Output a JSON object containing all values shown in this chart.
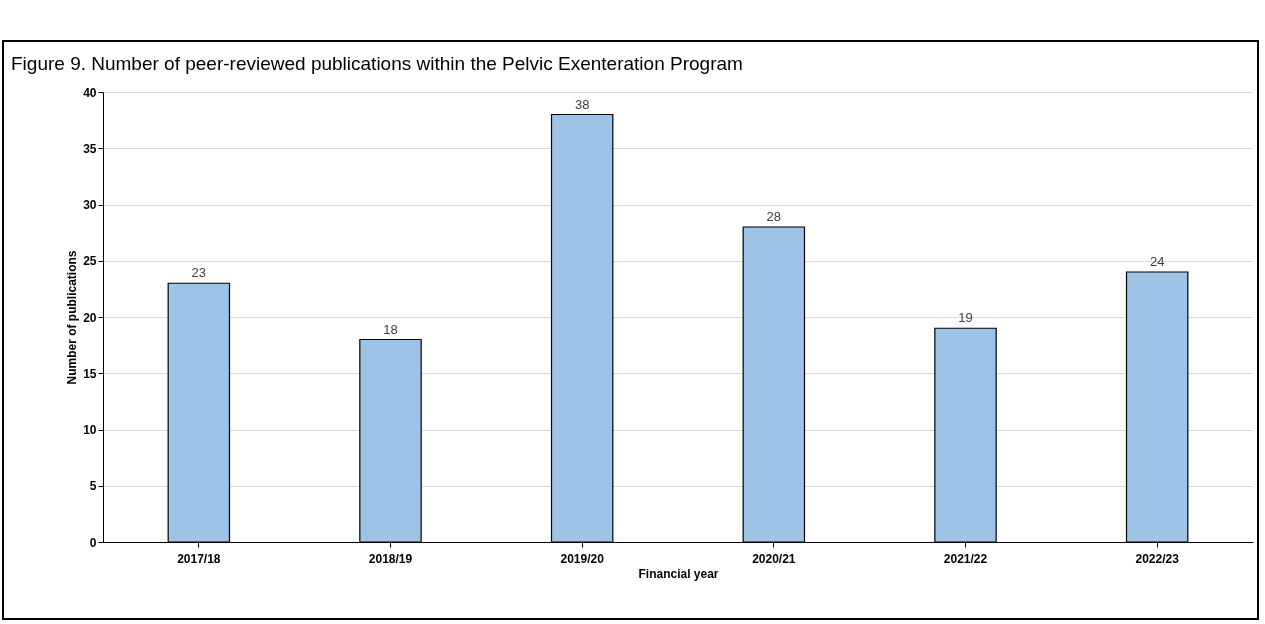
{
  "chart_data": {
    "type": "bar",
    "title": "Figure 9. Number of peer-reviewed publications within the Pelvic Exenteration Program",
    "xlabel": "Financial year",
    "ylabel": "Number of publications",
    "categories": [
      "2017/18",
      "2018/19",
      "2019/20",
      "2020/21",
      "2021/22",
      "2022/23"
    ],
    "values": [
      23,
      18,
      38,
      28,
      19,
      24
    ],
    "color": "#9dc3e6",
    "ylim": [
      0,
      40
    ],
    "yticks": [
      0,
      5,
      10,
      15,
      20,
      25,
      30,
      35,
      40
    ],
    "grid": "y",
    "data_labels": true
  }
}
